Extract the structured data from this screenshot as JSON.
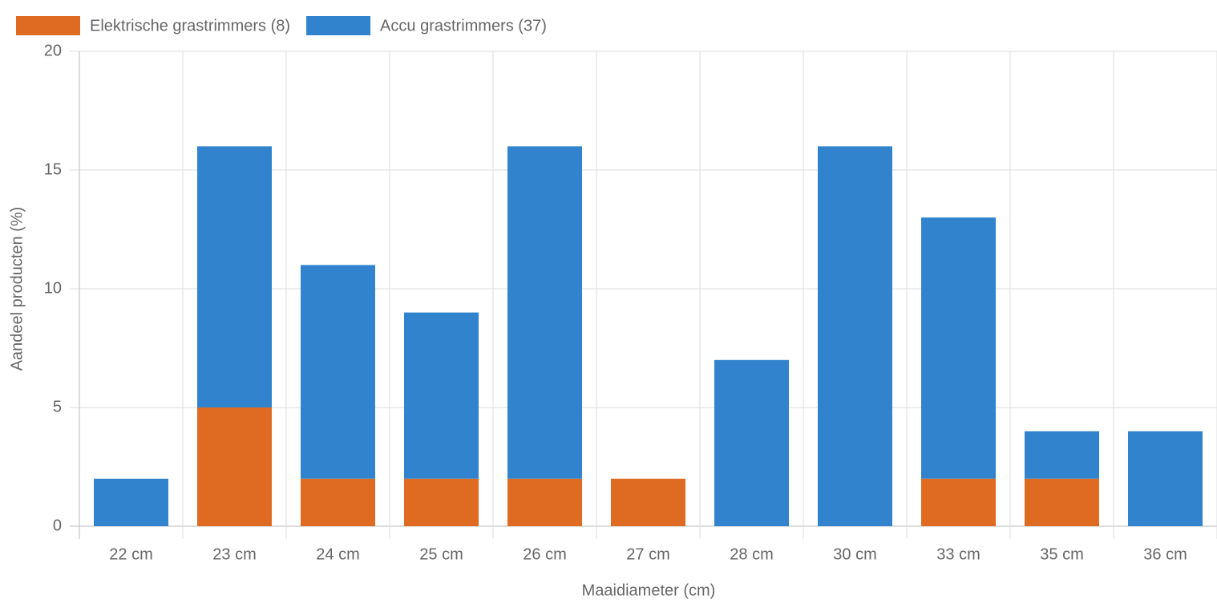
{
  "chart_data": {
    "type": "stacked_bar",
    "x_label": "Maaidiameter (cm)",
    "y_label": "Aandeel producten (%)",
    "categories": [
      "22 cm",
      "23 cm",
      "24 cm",
      "25 cm",
      "26 cm",
      "27 cm",
      "28 cm",
      "30 cm",
      "33 cm",
      "35 cm",
      "36 cm"
    ],
    "series": [
      {
        "name": "Elektrische grastrimmers (8)",
        "color": "#df6b22",
        "values": [
          0,
          5,
          2,
          2,
          2,
          2,
          0,
          0,
          2,
          2,
          0
        ]
      },
      {
        "name": "Accu grastrimmers (37)",
        "color": "#3083cc",
        "values": [
          2,
          11,
          9,
          7,
          14,
          0,
          7,
          16,
          11,
          2,
          4
        ]
      }
    ],
    "ylim": [
      0,
      20
    ],
    "yticks": [
      0,
      5,
      10,
      15,
      20
    ],
    "grid": true,
    "legend": "top-left"
  }
}
